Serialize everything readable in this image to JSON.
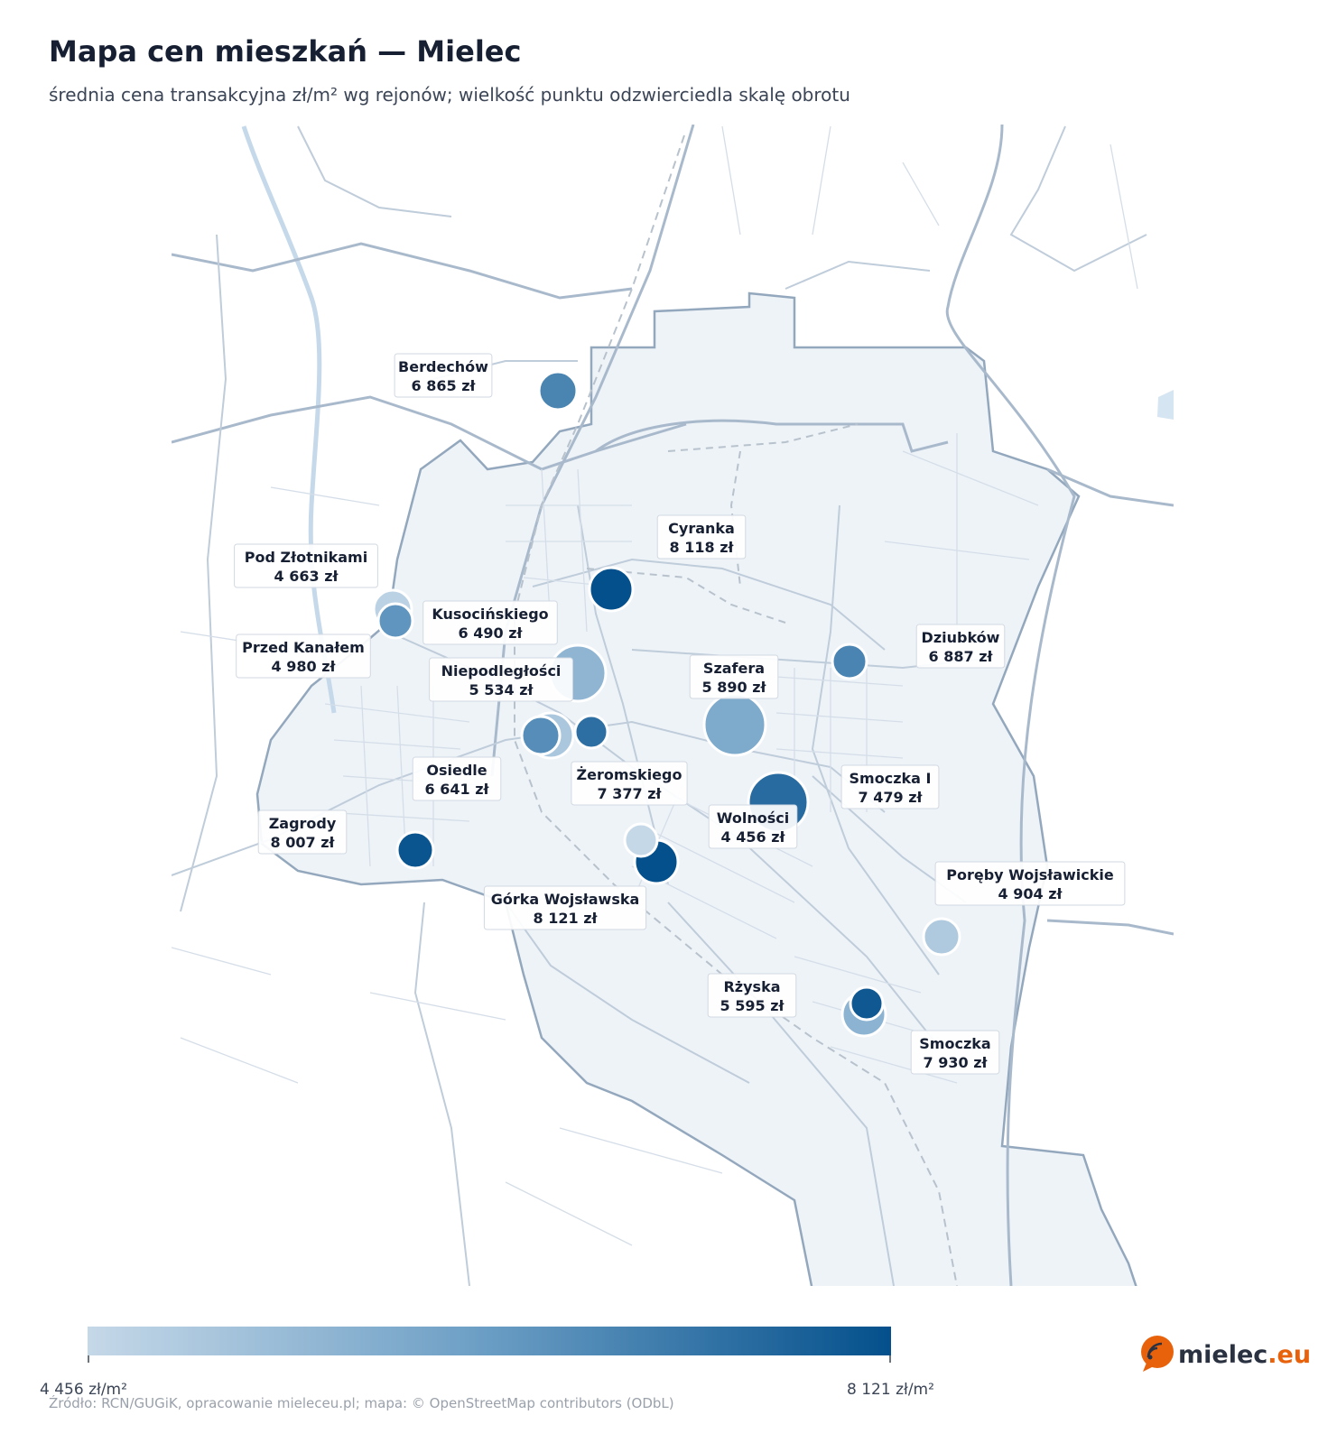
{
  "title": "Mapa cen mieszkań — Mielec",
  "subtitle": "średnia cena transakcyjna zł/m² wg rejonów; wielkość punktu odzwierciedla skalę obrotu",
  "source": "Źródło: RCN/GUGiK, opracowanie mieleceu.pl; mapa: © OpenStreetMap contributors (ODbL)",
  "colorbar": {
    "min_label": "4 456 zł/m²",
    "max_label": "8 121 zł/m²",
    "min": 4456,
    "max": 8121,
    "color_low": "#c5d8e8",
    "color_high": "#04508c"
  },
  "logo": {
    "name": "mielec",
    "accent": ".eu",
    "icon": "wifi-signal-icon",
    "color": "#e8620c"
  },
  "districts": [
    {
      "name": "Berdechów",
      "price": "6 865 zł",
      "value": 6865
    },
    {
      "name": "Cyranka",
      "price": "8 118 zł",
      "value": 8118
    },
    {
      "name": "Pod Złotnikami",
      "price": "4 663 zł",
      "value": 4663
    },
    {
      "name": "Kusocińskiego",
      "price": "6 490 zł",
      "value": 6490
    },
    {
      "name": "Przed Kanałem",
      "price": "4 980 zł",
      "value": 4980
    },
    {
      "name": "Niepodległości",
      "price": "5 534 zł",
      "value": 5534
    },
    {
      "name": "Szafera",
      "price": "5 890 zł",
      "value": 5890
    },
    {
      "name": "Dziubków",
      "price": "6 887 zł",
      "value": 6887
    },
    {
      "name": "Osiedle",
      "price": "6 641 zł",
      "value": 6641
    },
    {
      "name": "Żeromskiego",
      "price": "7 377 zł",
      "value": 7377
    },
    {
      "name": "Smoczka I",
      "price": "7 479 zł",
      "value": 7479
    },
    {
      "name": "Zagrody",
      "price": "8 007 zł",
      "value": 8007
    },
    {
      "name": "Wolności",
      "price": "4 456 zł",
      "value": 4456
    },
    {
      "name": "Górka Wojsławska",
      "price": "8 121 zł",
      "value": 8121
    },
    {
      "name": "Poręby Wojsławickie",
      "price": "4 904 zł",
      "value": 4904
    },
    {
      "name": "Rżyska",
      "price": "5 595 zł",
      "value": 5595
    },
    {
      "name": "Smoczka",
      "price": "7 930 zł",
      "value": 7930
    }
  ]
}
